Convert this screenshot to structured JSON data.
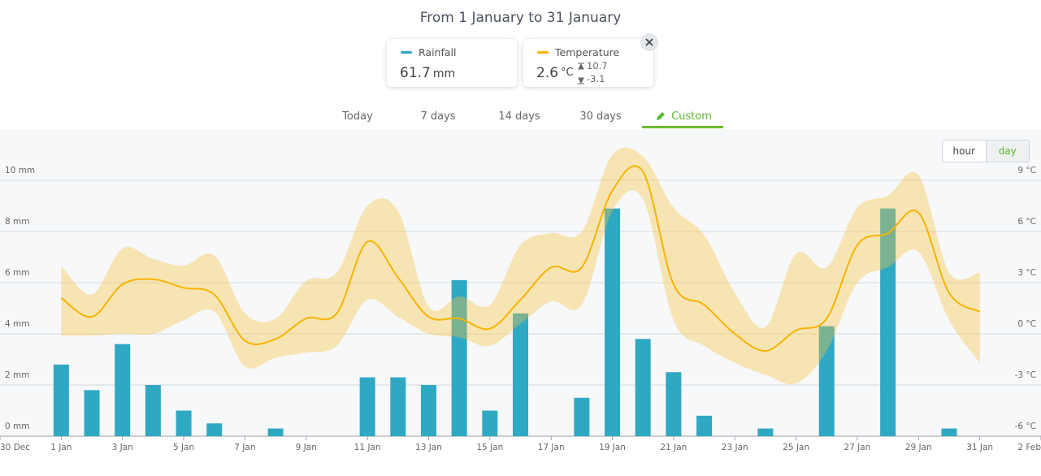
{
  "header": {
    "title": "From 1 January to 31 January"
  },
  "cards": [
    {
      "label": "Rainfall",
      "value": 61.7,
      "unit": "mm",
      "color": "#2fa8c4"
    },
    {
      "label": "Temperature",
      "value": 2.6,
      "unit": "°C",
      "max": 10.7,
      "min": -3.1,
      "color": "#f5b400"
    }
  ],
  "tabs": [
    {
      "label": "Today"
    },
    {
      "label": "7 days"
    },
    {
      "label": "14 days"
    },
    {
      "label": "30 days"
    },
    {
      "label": "Custom",
      "active": true
    }
  ],
  "toggle": [
    {
      "label": "hour"
    },
    {
      "label": "day",
      "active": true
    }
  ],
  "chart_data": {
    "type": "combo",
    "x": [
      1,
      2,
      3,
      4,
      5,
      6,
      7,
      8,
      9,
      10,
      11,
      12,
      13,
      14,
      15,
      16,
      17,
      18,
      19,
      20,
      21,
      22,
      23,
      24,
      25,
      26,
      27,
      28,
      29,
      30,
      31
    ],
    "xlim": [
      -1,
      33
    ],
    "xticks": [
      {
        "value": -1,
        "label": "30 Dec"
      },
      {
        "value": 1,
        "label": "1 Jan"
      },
      {
        "value": 3,
        "label": "3 Jan"
      },
      {
        "value": 5,
        "label": "5 Jan"
      },
      {
        "value": 7,
        "label": "7 Jan"
      },
      {
        "value": 9,
        "label": "9 Jan"
      },
      {
        "value": 11,
        "label": "11 Jan"
      },
      {
        "value": 13,
        "label": "13 Jan"
      },
      {
        "value": 15,
        "label": "15 Jan"
      },
      {
        "value": 17,
        "label": "17 Jan"
      },
      {
        "value": 19,
        "label": "19 Jan"
      },
      {
        "value": 21,
        "label": "21 Jan"
      },
      {
        "value": 23,
        "label": "23 Jan"
      },
      {
        "value": 25,
        "label": "25 Jan"
      },
      {
        "value": 27,
        "label": "27 Jan"
      },
      {
        "value": 29,
        "label": "29 Jan"
      },
      {
        "value": 31,
        "label": "31 Jan"
      },
      {
        "value": 33,
        "label": "2 Feb"
      }
    ],
    "ylim": [
      0,
      12
    ],
    "yticks": [
      {
        "value": 0,
        "label": "0 mm"
      },
      {
        "value": 2,
        "label": "2 mm"
      },
      {
        "value": 4,
        "label": "4 mm"
      },
      {
        "value": 6,
        "label": "6 mm"
      },
      {
        "value": 8,
        "label": "8 mm"
      },
      {
        "value": 10,
        "label": "10 mm"
      }
    ],
    "y2lim": [
      -6,
      12
    ],
    "y2ticks": [
      {
        "value": -6,
        "label": "-6 °C"
      },
      {
        "value": -3,
        "label": "-3 °C"
      },
      {
        "value": 0,
        "label": "0 °C"
      },
      {
        "value": 3,
        "label": "3 °C"
      },
      {
        "value": 6,
        "label": "6 °C"
      },
      {
        "value": 9,
        "label": "9 °C"
      }
    ],
    "grid": true,
    "series": [
      {
        "type": "bar",
        "color": "#2fa8c4",
        "values": [
          2.8,
          1.8,
          3.6,
          2.0,
          1.0,
          0.5,
          0,
          0.3,
          0,
          0,
          2.3,
          2.3,
          2.0,
          6.1,
          1.0,
          4.8,
          0,
          1.5,
          8.9,
          3.8,
          2.5,
          0.8,
          0,
          0.3,
          0,
          4.3,
          0,
          8.9,
          0,
          0.3,
          0
        ]
      },
      {
        "type": "line",
        "axis": "y2",
        "color": "#f5b400",
        "band_color": "#f6c23e",
        "values": [
          2.1,
          1.0,
          2.9,
          3.2,
          2.7,
          2.3,
          -0.4,
          -0.3,
          0.9,
          1.2,
          5.4,
          3.3,
          1.0,
          0.9,
          0.3,
          2.0,
          3.9,
          3.9,
          8.4,
          9.5,
          2.9,
          1.7,
          0.0,
          -1.0,
          0.2,
          0.9,
          5.2,
          5.9,
          7.1,
          2.4,
          1.3
        ],
        "max": [
          4.0,
          2.3,
          5.0,
          4.4,
          4.0,
          4.6,
          1.2,
          0.9,
          3.1,
          3.6,
          7.5,
          7.2,
          1.6,
          2.2,
          1.7,
          5.2,
          5.9,
          6.0,
          10.5,
          10.4,
          7.4,
          5.8,
          2.4,
          0.4,
          4.7,
          3.9,
          7.4,
          8.1,
          9.3,
          3.6,
          3.6
        ],
        "min": [
          -0.1,
          -0.1,
          0.0,
          0.0,
          0.8,
          1.3,
          -1.9,
          -1.4,
          -1.1,
          -0.7,
          2.0,
          1.0,
          0.0,
          -0.2,
          -0.7,
          0.6,
          1.9,
          1.7,
          7.2,
          7.9,
          0.8,
          -0.7,
          -1.7,
          -2.4,
          -2.9,
          -1.0,
          3.0,
          3.9,
          4.8,
          0.8,
          -1.7
        ]
      }
    ]
  }
}
